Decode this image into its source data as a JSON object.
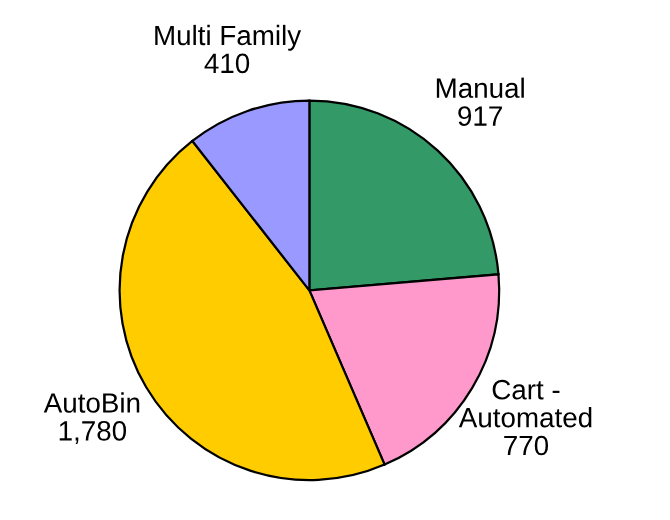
{
  "chart_data": {
    "type": "pie",
    "categories": [
      "Manual",
      "Cart -\nAutomated",
      "AutoBin",
      "Multi Family"
    ],
    "values": [
      917,
      770,
      1780,
      410
    ],
    "value_labels": [
      "917",
      "770",
      "1,780",
      "410"
    ],
    "colors": [
      "#339966",
      "#ff99cc",
      "#ffcc00",
      "#9999ff"
    ],
    "legend": false
  }
}
